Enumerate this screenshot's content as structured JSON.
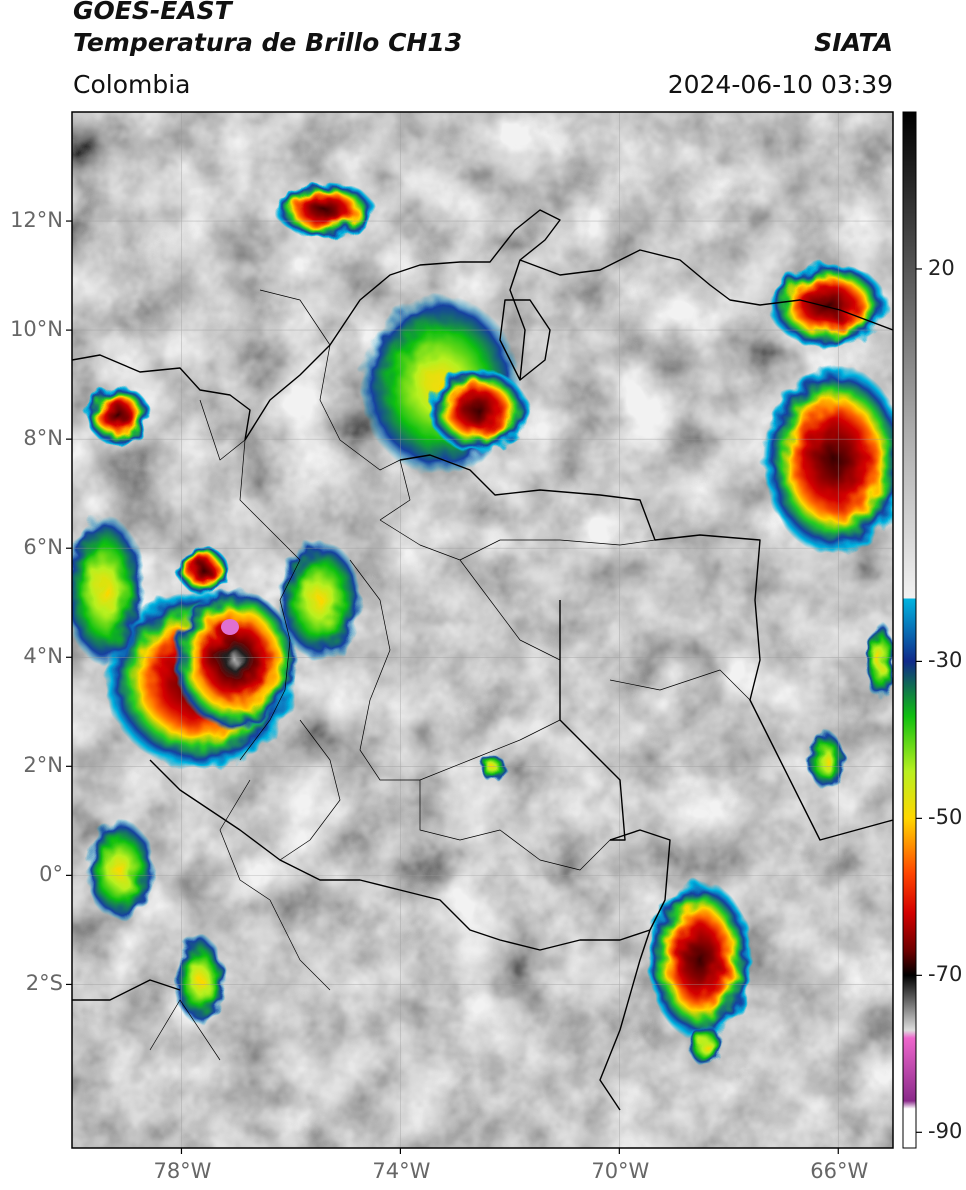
{
  "header": {
    "title_line1": "GOES-EAST",
    "title_line2": "Temperatura de Brillo CH13",
    "brand": "SIATA",
    "region": "Colombia",
    "timestamp": "2024-06-10 03:39"
  },
  "map": {
    "lon_range": [
      -80,
      -65
    ],
    "lat_range": [
      -5,
      14
    ],
    "lat_ticks": [
      "12°N",
      "10°N",
      "8°N",
      "6°N",
      "4°N",
      "2°N",
      "0°",
      "2°S"
    ],
    "lon_ticks": [
      "78°W",
      "74°W",
      "70°W",
      "66°W"
    ]
  },
  "colorbar": {
    "ticks": [
      "20",
      "-30",
      "-50",
      "-70",
      "-90"
    ],
    "scale": [
      {
        "value": 40,
        "color": "#000000"
      },
      {
        "value": 20,
        "color": "#555555"
      },
      {
        "value": 0,
        "color": "#aaaaaa"
      },
      {
        "value": -22,
        "color": "#f2f2f2"
      },
      {
        "value": -22,
        "color": "#00b4e0"
      },
      {
        "value": -30,
        "color": "#102a8a"
      },
      {
        "value": -37,
        "color": "#10c010"
      },
      {
        "value": -44,
        "color": "#b8f020"
      },
      {
        "value": -50,
        "color": "#ffd700"
      },
      {
        "value": -57,
        "color": "#ff4500"
      },
      {
        "value": -62,
        "color": "#d40000"
      },
      {
        "value": -67,
        "color": "#6a0000"
      },
      {
        "value": -70,
        "color": "#000000"
      },
      {
        "value": -77,
        "color": "#dddddd"
      },
      {
        "value": -78,
        "color": "#ee66cc"
      },
      {
        "value": -86,
        "color": "#8a2a8a"
      },
      {
        "value": -87,
        "color": "#ffffff"
      }
    ]
  }
}
